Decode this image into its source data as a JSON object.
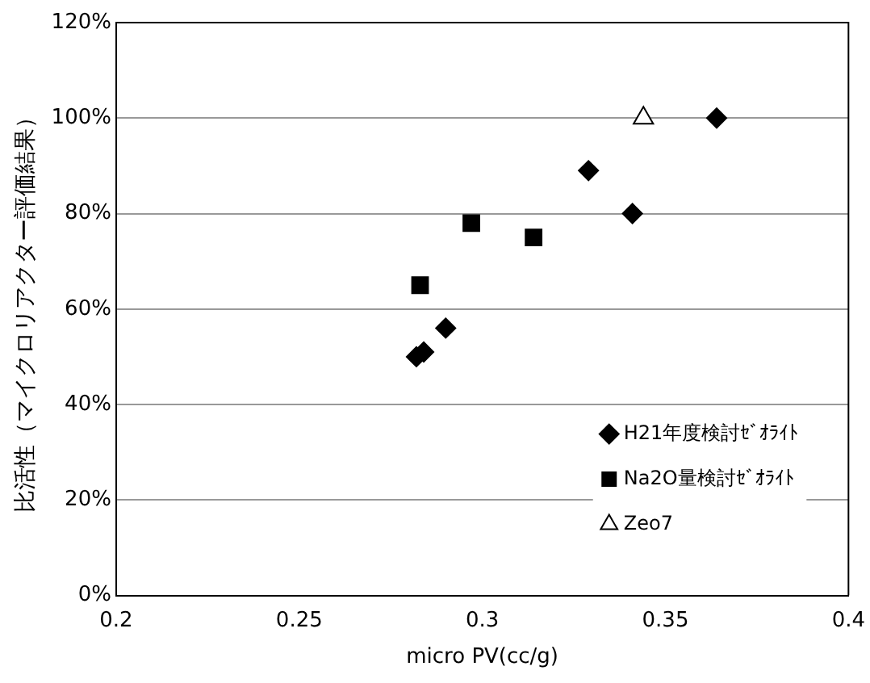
{
  "chart_data": {
    "type": "scatter",
    "xlabel": "micro PV(cc/g)",
    "ylabel": "比活性（マイクロリアクター評価結果）",
    "xlim": [
      0.2,
      0.4
    ],
    "xticks": [
      0.2,
      0.25,
      0.3,
      0.35,
      0.4
    ],
    "ylim": [
      0,
      120
    ],
    "yticks": [
      {
        "value": 0,
        "label": "0%"
      },
      {
        "value": 20,
        "label": "20%"
      },
      {
        "value": 40,
        "label": "40%"
      },
      {
        "value": 60,
        "label": "60%"
      },
      {
        "value": 80,
        "label": "80%"
      },
      {
        "value": 100,
        "label": "100%"
      },
      {
        "value": 120,
        "label": "120%"
      }
    ],
    "grid": "y",
    "legend": "bottom right",
    "series": [
      {
        "name": "H21年度検討ｾﾞｵﾗｲﾄ",
        "color": "#000000",
        "marker": "diamond",
        "x": [
          0.364,
          0.329,
          0.341,
          0.29,
          0.284,
          0.282
        ],
        "values": [
          100,
          89,
          80,
          56,
          51,
          50
        ]
      },
      {
        "name": "Na2O量検討ｾﾞｵﾗｲﾄ",
        "color": "#000000",
        "marker": "square",
        "x": [
          0.297,
          0.314,
          0.283
        ],
        "values": [
          78,
          75,
          65
        ]
      },
      {
        "name": "Zeo7",
        "color": "#000000",
        "marker": "triangle",
        "x": [
          0.344
        ],
        "values": [
          100
        ]
      }
    ]
  }
}
